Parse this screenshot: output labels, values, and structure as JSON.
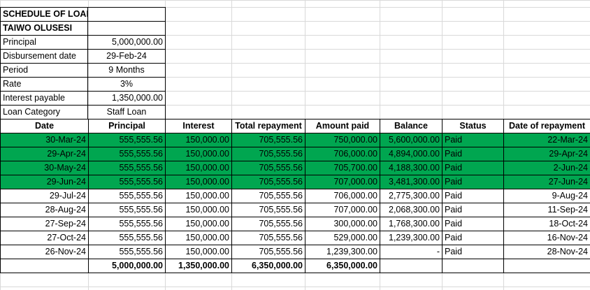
{
  "info": {
    "title": "SCHEDULE OF LOAN",
    "name": "TAIWO OLUSESI",
    "rows": [
      {
        "label": "Principal",
        "value": "5,000,000.00"
      },
      {
        "label": "Disbursement date",
        "value": "29-Feb-24"
      },
      {
        "label": "Period",
        "value": "9 Months"
      },
      {
        "label": "Rate",
        "value": "3%"
      },
      {
        "label": "Interest payable",
        "value": "1,350,000.00"
      },
      {
        "label": "Loan Category",
        "value": "Staff Loan"
      }
    ]
  },
  "headers": [
    "Date",
    "Principal",
    "Interest",
    "Total repayment",
    "Amount paid",
    "Balance",
    "Status",
    "Date of repayment"
  ],
  "highlight_color": "#00a650",
  "rows": [
    {
      "date": "30-Mar-24",
      "principal": "555,555.56",
      "interest": "150,000.00",
      "total": "705,555.56",
      "paid": "750,000.00",
      "balance": "5,600,000.00",
      "status": "Paid",
      "repaid": "22-Mar-24",
      "highlight": true
    },
    {
      "date": "29-Apr-24",
      "principal": "555,555.56",
      "interest": "150,000.00",
      "total": "705,555.56",
      "paid": "706,000.00",
      "balance": "4,894,000.00",
      "status": "Paid",
      "repaid": "29-Apr-24",
      "highlight": true
    },
    {
      "date": "30-May-24",
      "principal": "555,555.56",
      "interest": "150,000.00",
      "total": "705,555.56",
      "paid": "705,700.00",
      "balance": "4,188,300.00",
      "status": "Paid",
      "repaid": "2-Jun-24",
      "highlight": true
    },
    {
      "date": "29-Jun-24",
      "principal": "555,555.56",
      "interest": "150,000.00",
      "total": "705,555.56",
      "paid": "707,000.00",
      "balance": "3,481,300.00",
      "status": "Paid",
      "repaid": "27-Jun-24",
      "highlight": true
    },
    {
      "date": "29-Jul-24",
      "principal": "555,555.56",
      "interest": "150,000.00",
      "total": "705,555.56",
      "paid": "706,000.00",
      "balance": "2,775,300.00",
      "status": "Paid",
      "repaid": "9-Aug-24",
      "highlight": false
    },
    {
      "date": "28-Aug-24",
      "principal": "555,555.56",
      "interest": "150,000.00",
      "total": "705,555.56",
      "paid": "707,000.00",
      "balance": "2,068,300.00",
      "status": "Paid",
      "repaid": "11-Sep-24",
      "highlight": false
    },
    {
      "date": "27-Sep-24",
      "principal": "555,555.56",
      "interest": "150,000.00",
      "total": "705,555.56",
      "paid": "300,000.00",
      "balance": "1,768,300.00",
      "status": "Paid",
      "repaid": "18-Oct-24",
      "highlight": false
    },
    {
      "date": "27-Oct-24",
      "principal": "555,555.56",
      "interest": "150,000.00",
      "total": "705,555.56",
      "paid": "529,000.00",
      "balance": "1,239,300.00",
      "status": "Paid",
      "repaid": "16-Nov-24",
      "highlight": false
    },
    {
      "date": "26-Nov-24",
      "principal": "555,555.56",
      "interest": "150,000.00",
      "total": "705,555.56",
      "paid": "1,239,300.00",
      "balance": "-",
      "status": "Paid",
      "repaid": "28-Nov-24",
      "highlight": false
    }
  ],
  "totals": {
    "principal": "5,000,000.00",
    "interest": "1,350,000.00",
    "total": "6,350,000.00",
    "paid": "6,350,000.00"
  }
}
